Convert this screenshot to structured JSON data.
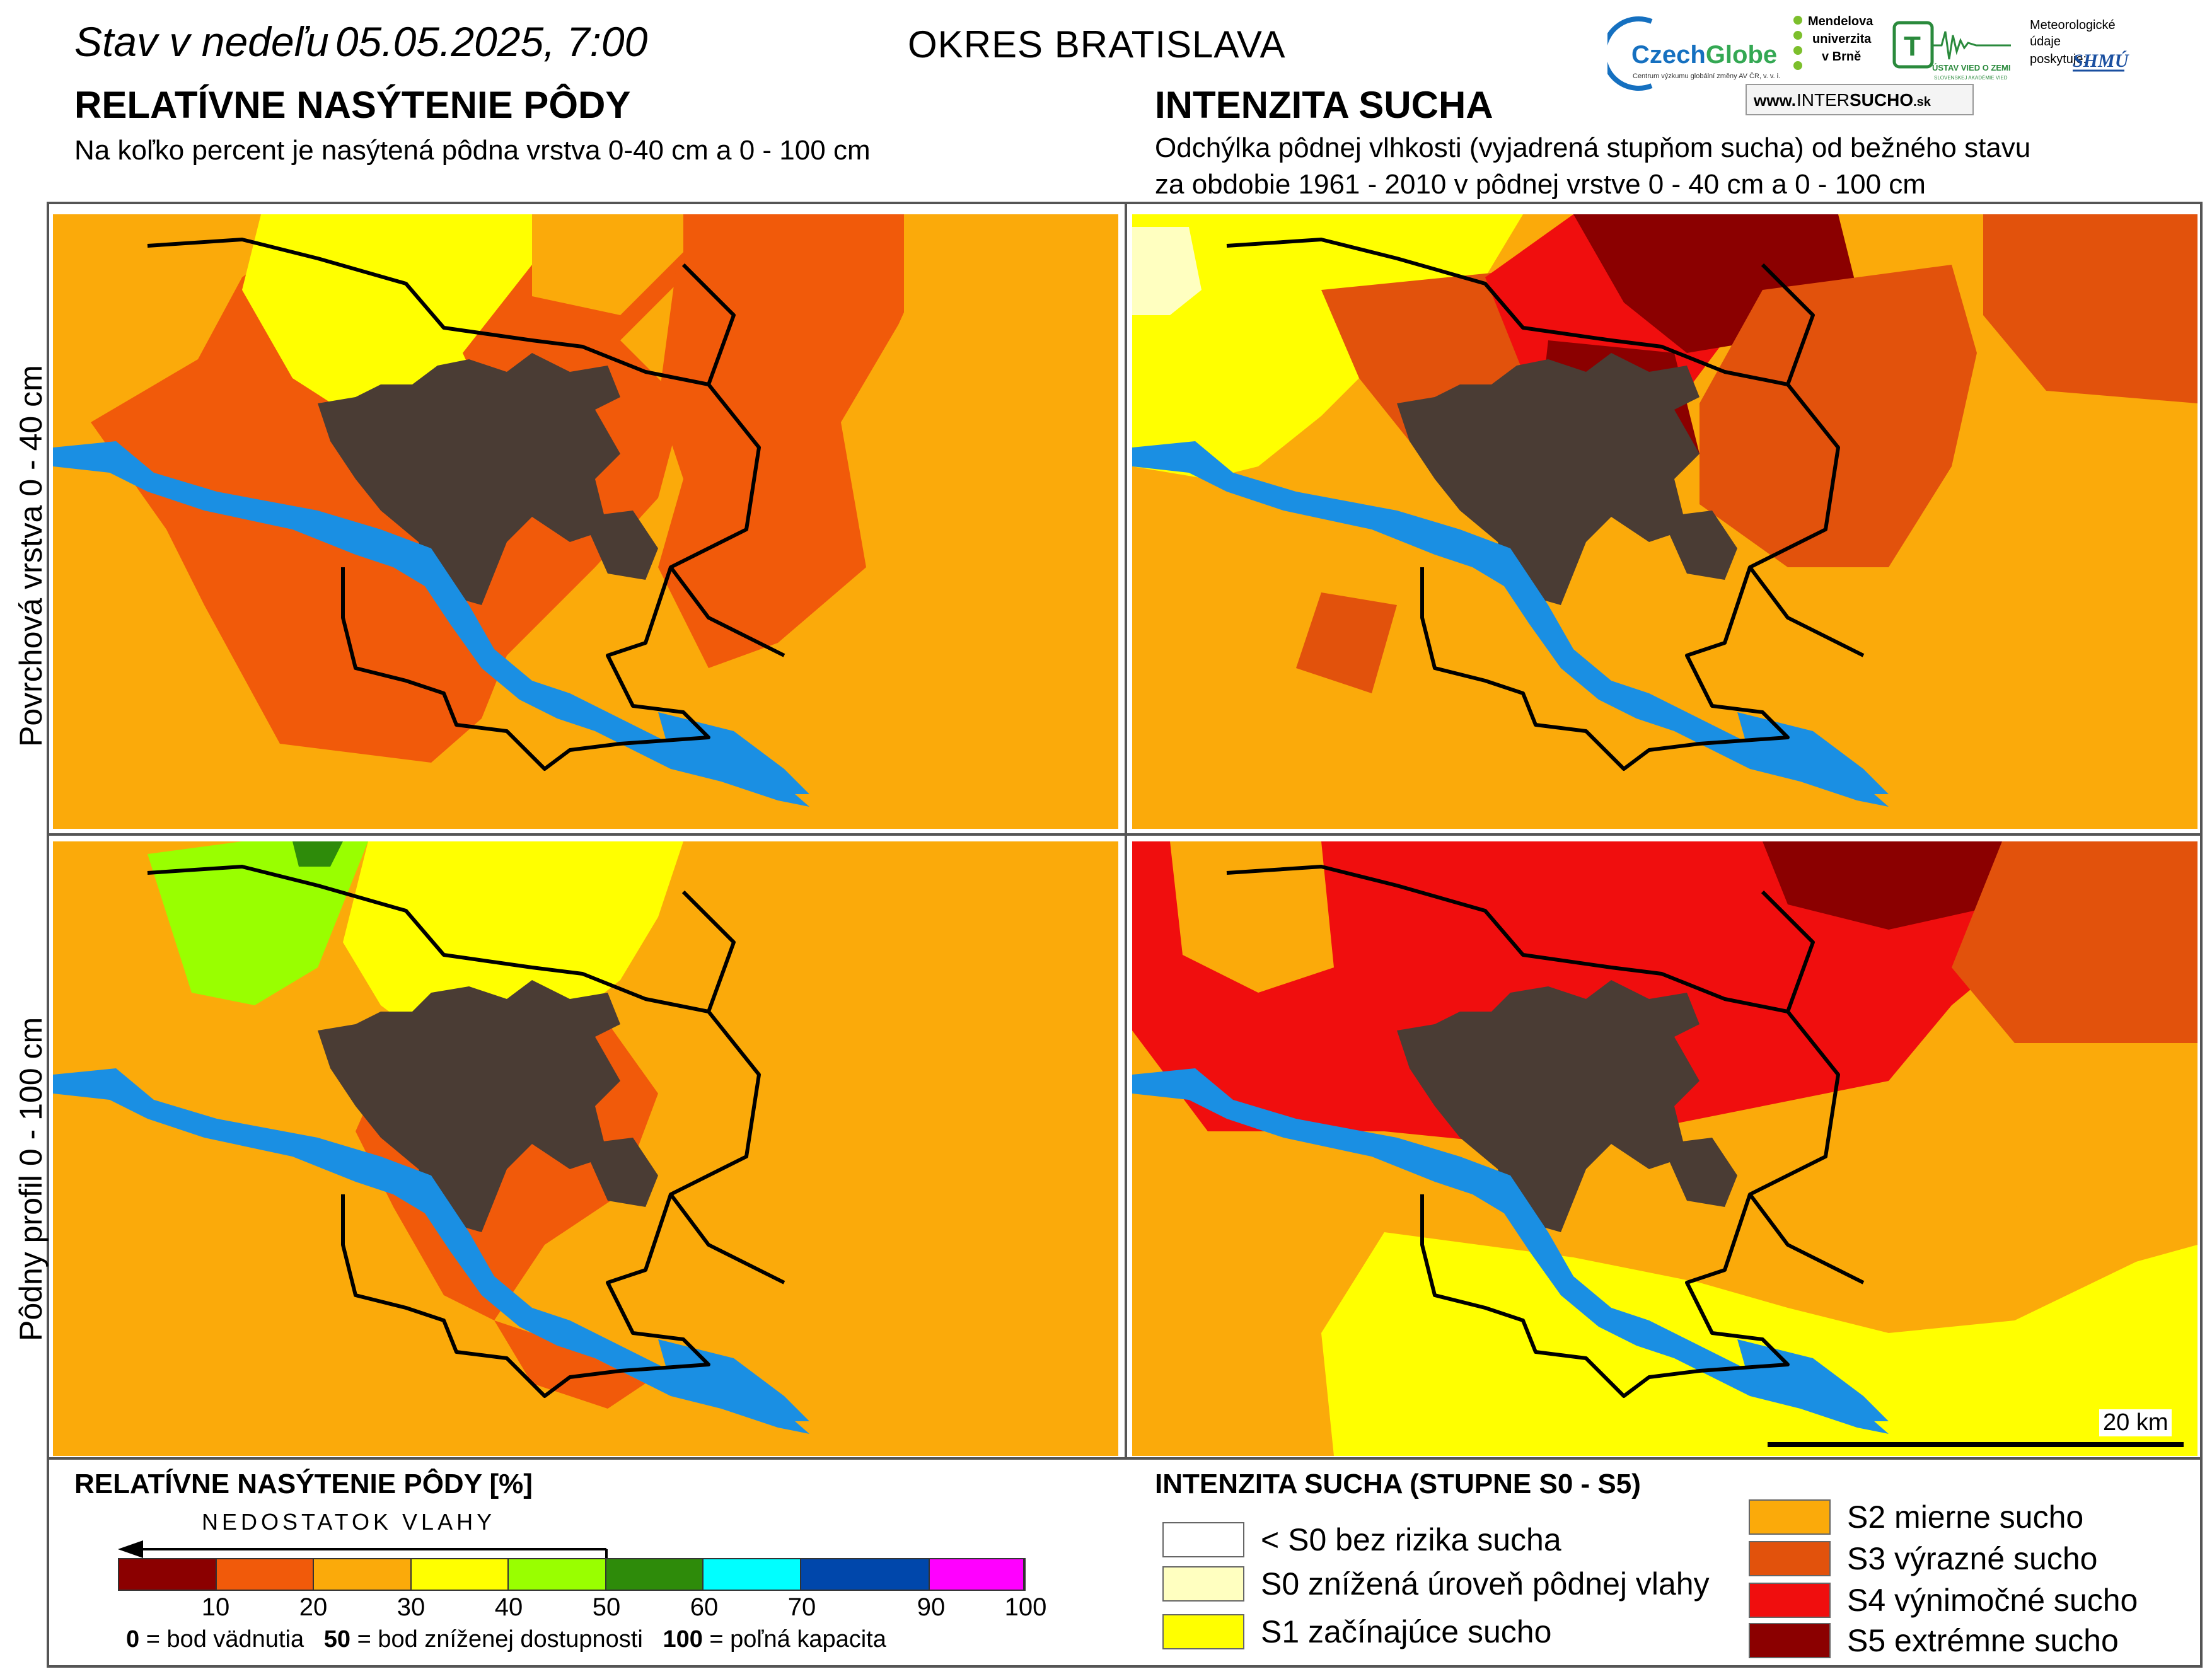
{
  "header": {
    "date_prefix": "Stav v nedeľu",
    "date": "05.05.2025, 7:00",
    "district": "OKRES  BRATISLAVA"
  },
  "left_section": {
    "title": "RELATÍVNE NASÝTENIE PÔDY",
    "subtitle": "Na koľko percent je nasýtená pôdna vrstva 0-40 cm a 0 - 100 cm"
  },
  "right_section": {
    "title": "INTENZITA SUCHA",
    "subtitle_line1": "Odchýlka pôdnej vlhkosti (vyjadrená stupňom sucha) od bežného stavu",
    "subtitle_line2": "za obdobie 1961 - 2010 v pôdnej vrstve 0 - 40 cm a 0 - 100 cm"
  },
  "row_labels": {
    "top": "Povrchová vrstva 0 - 40 cm",
    "bottom": "Pôdny profil 0 - 100 cm"
  },
  "logos": {
    "czechglobe": "CzechGlobe",
    "czechglobe_sub": "Centrum výzkumu globální změny AV ČR, v. v. i.",
    "mendel_1": "Mendelova",
    "mendel_2": "univerzita",
    "mendel_3": "v Brně",
    "ustav": "ÚSTAV VIED O ZEMI",
    "ustav_sub": "SLOVENSKEJ AKADÉMIE VIED",
    "meteo_1": "Meteorologické",
    "meteo_2": "údaje",
    "meteo_3": "poskytuje:",
    "shmu": "SHMÚ",
    "web_prefix": "www.",
    "web_a": "INTER",
    "web_b": "SUCHO",
    "web_c": ".sk"
  },
  "legend_saturation": {
    "title": "RELATÍVNE NASÝTENIE PÔDY [%]",
    "arrow_label": "NEDOSTATOK VLAHY",
    "bins": [
      {
        "from": 0,
        "to": 10,
        "color": "#8b0000"
      },
      {
        "from": 10,
        "to": 20,
        "color": "#f15a0a"
      },
      {
        "from": 20,
        "to": 30,
        "color": "#fbaa0a"
      },
      {
        "from": 30,
        "to": 40,
        "color": "#ffff00"
      },
      {
        "from": 40,
        "to": 50,
        "color": "#99ff00"
      },
      {
        "from": 50,
        "to": 60,
        "color": "#2e8b0a"
      },
      {
        "from": 60,
        "to": 70,
        "color": "#00ffff"
      },
      {
        "from": 70,
        "to": 90,
        "color": "#0047ab"
      },
      {
        "from": 90,
        "to": 100,
        "color": "#ff00ff"
      }
    ],
    "ticks": [
      "10",
      "20",
      "30",
      "40",
      "50",
      "60",
      "70",
      "90",
      "100"
    ],
    "note_0_val": "0",
    "note_0_text": " = bod vädnutia",
    "note_50_val": "50",
    "note_50_text": " = bod zníženej dostupnosti",
    "note_100_val": "100",
    "note_100_text": " = poľná kapacita"
  },
  "legend_drought": {
    "title": "INTENZITA SUCHA (STUPNE S0 - S5)",
    "items": [
      {
        "label": "< S0 bez rizika sucha",
        "color": "#ffffff"
      },
      {
        "label": "S0 znížená úroveň pôdnej vlahy",
        "color": "#ffffc0"
      },
      {
        "label": "S1 začínajúce sucho",
        "color": "#ffff00"
      },
      {
        "label": "S2 mierne sucho",
        "color": "#fbaa0a"
      },
      {
        "label": "S3 výrazné sucho",
        "color": "#e2520c"
      },
      {
        "label": "S4 výnimočné sucho",
        "color": "#f00e0e"
      },
      {
        "label": "S5 extrémne sucho",
        "color": "#8b0000"
      }
    ]
  },
  "scale": {
    "label": "20 km"
  },
  "colors": {
    "city": "#4a3c34",
    "water": "#1a8fe3",
    "border": "#000000",
    "minor_border": "#888888"
  }
}
